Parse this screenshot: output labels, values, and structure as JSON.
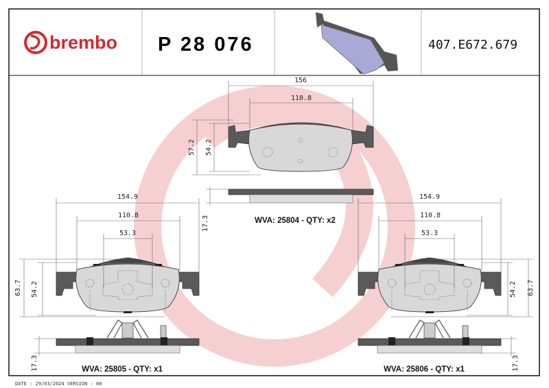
{
  "header": {
    "brand": "brembo",
    "part_number": "P 28 076",
    "reference_code": "407.E672.679"
  },
  "colors": {
    "brand_red": "#d7282f",
    "watermark": "#f3d3d5",
    "pad_preview": "#a9a9d6"
  },
  "views": {
    "top": {
      "width": "156",
      "inner_width": "110.8",
      "height_total": "57.2",
      "height_friction": "54.2",
      "thickness": "17.3",
      "label": "WVA: 25804 - QTY: x2"
    },
    "left": {
      "width": "154.9",
      "inner_width": "110.8",
      "center_width": "53.3",
      "height_total": "63.7",
      "height_friction": "54.2",
      "thickness": "17.3",
      "label": "WVA: 25805 - QTY: x1"
    },
    "right": {
      "width": "154.9",
      "inner_width": "110.8",
      "center_width": "53.3",
      "height_total": "63.7",
      "height_friction": "54.2",
      "thickness": "17.3",
      "label": "WVA: 25806 - QTY: x1"
    }
  },
  "footer": {
    "date_version": "DATE : 29/03/2024 VERSION : 00"
  }
}
